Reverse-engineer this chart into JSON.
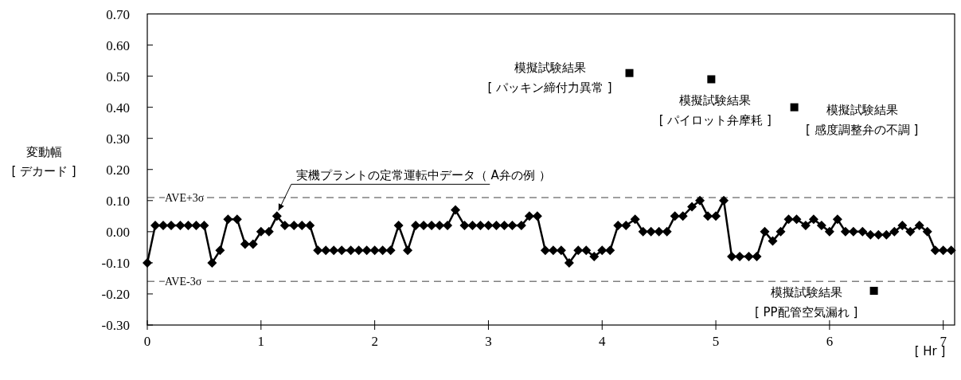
{
  "chart_data": {
    "type": "line",
    "marker": "diamond",
    "line_style": "solid",
    "xlabel": "[ Hr ]",
    "ylabel": "変動幅\n[ デカード ]",
    "xlim": [
      0,
      7.1
    ],
    "xticks": [
      0,
      1,
      2,
      3,
      4,
      5,
      6,
      7
    ],
    "ylim": [
      -0.3,
      0.7
    ],
    "yticks": [
      {
        "value": -0.3,
        "label": "-0.30"
      },
      {
        "value": -0.2,
        "label": "-0.20"
      },
      {
        "value": -0.1,
        "label": "-0.10"
      },
      {
        "value": 0,
        "label": "0.00"
      },
      {
        "value": 0.1,
        "label": "0.10"
      },
      {
        "value": 0.2,
        "label": "0.20"
      },
      {
        "value": 0.3,
        "label": "0.30"
      },
      {
        "value": 0.4,
        "label": "0.40"
      },
      {
        "value": 0.5,
        "label": "0.50"
      },
      {
        "value": 0.6,
        "label": "0.60"
      },
      {
        "value": 0.7,
        "label": "0.70"
      }
    ],
    "series": [
      {
        "type": "line",
        "color": "#000000",
        "x": [
          0,
          0.07,
          0.14,
          0.21,
          0.29,
          0.36,
          0.43,
          0.5,
          0.57,
          0.64,
          0.71,
          0.79,
          0.86,
          0.93,
          1,
          1.07,
          1.14,
          1.21,
          1.29,
          1.36,
          1.43,
          1.5,
          1.57,
          1.64,
          1.71,
          1.79,
          1.86,
          1.93,
          2,
          2.07,
          2.14,
          2.21,
          2.29,
          2.36,
          2.43,
          2.5,
          2.57,
          2.64,
          2.71,
          2.79,
          2.86,
          2.93,
          3,
          3.07,
          3.14,
          3.21,
          3.29,
          3.36,
          3.43,
          3.5,
          3.57,
          3.64,
          3.71,
          3.79,
          3.86,
          3.93,
          4,
          4.07,
          4.14,
          4.21,
          4.29,
          4.36,
          4.43,
          4.5,
          4.57,
          4.64,
          4.71,
          4.79,
          4.86,
          4.93,
          5,
          5.07,
          5.14,
          5.21,
          5.29,
          5.36,
          5.43,
          5.5,
          5.57,
          5.64,
          5.71,
          5.79,
          5.86,
          5.93,
          6,
          6.07,
          6.14,
          6.21,
          6.29,
          6.36,
          6.43,
          6.5,
          6.57,
          6.64,
          6.71,
          6.79,
          6.86,
          6.93,
          7,
          7.07
        ],
        "values": [
          -0.1,
          0.02,
          0.02,
          0.02,
          0.02,
          0.02,
          0.02,
          0.02,
          -0.1,
          -0.06,
          0.04,
          0.04,
          -0.04,
          -0.04,
          0,
          0,
          0.05,
          0.02,
          0.02,
          0.02,
          0.02,
          -0.06,
          -0.06,
          -0.06,
          -0.06,
          -0.06,
          -0.06,
          -0.06,
          -0.06,
          -0.06,
          -0.06,
          0.02,
          -0.06,
          0.02,
          0.02,
          0.02,
          0.02,
          0.02,
          0.07,
          0.02,
          0.02,
          0.02,
          0.02,
          0.02,
          0.02,
          0.02,
          0.02,
          0.05,
          0.05,
          -0.06,
          -0.06,
          -0.06,
          -0.1,
          -0.06,
          -0.06,
          -0.08,
          -0.06,
          -0.06,
          0.02,
          0.02,
          0.04,
          0,
          0,
          0,
          0,
          0.05,
          0.05,
          0.08,
          0.1,
          0.05,
          0.05,
          0.1,
          -0.08,
          -0.08,
          -0.08,
          -0.08,
          0,
          -0.03,
          0,
          0.04,
          0.04,
          0.02,
          0.04,
          0.02,
          0,
          0.04,
          0,
          0,
          0,
          -0.01,
          -0.01,
          -0.01,
          0,
          0.02,
          0,
          0.02,
          0,
          -0.06,
          -0.06,
          -0.06
        ]
      },
      {
        "type": "scatter",
        "marker": "square",
        "color": "#000000",
        "x": [
          4.24,
          4.96,
          5.69,
          6.39
        ],
        "values": [
          0.51,
          0.49,
          0.4,
          -0.19
        ]
      }
    ],
    "ref_lines": [
      {
        "axis": "y",
        "value": 0.11,
        "label": "AVE+3σ",
        "color": "#808080",
        "line_style": "dashed"
      },
      {
        "axis": "y",
        "value": -0.16,
        "label": "AVE-3σ",
        "color": "#808080",
        "line_style": "dashed"
      }
    ],
    "annotations": [
      {
        "text": "実機プラントの定常運転中データ（ A弁の例 ）",
        "x": 1.14,
        "y": 0.05
      },
      {
        "text": "模擬試験結果\n[ パッキン締付力異常 ]",
        "x": 4.24,
        "y": 0.51
      },
      {
        "text": "模擬試験結果\n[ パイロット弁摩耗 ]",
        "x": 4.96,
        "y": 0.49
      },
      {
        "text": "模擬試験結果\n[ 感度調整弁の不調 ]",
        "x": 5.69,
        "y": 0.4
      },
      {
        "text": "模擬試験結果\n[ PP配管空気漏れ ]",
        "x": 6.39,
        "y": -0.19
      }
    ]
  }
}
